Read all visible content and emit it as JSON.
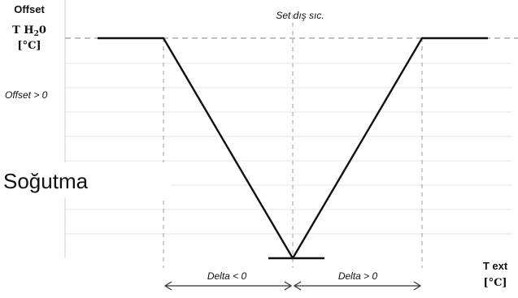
{
  "diagram": {
    "y_axis": {
      "title": "Offset",
      "quantity_main": "T H",
      "quantity_sub": "2",
      "quantity_tail": "0",
      "unit": "[°C]"
    },
    "setpoint_label": "Set dış sıc.",
    "offset_positive_label": "Offset > 0",
    "mode_label": "Soğutma",
    "delta_negative_label": "Delta < 0",
    "delta_positive_label": "Delta > 0",
    "x_axis": {
      "title": "T ext",
      "unit": "[°C]"
    }
  }
}
